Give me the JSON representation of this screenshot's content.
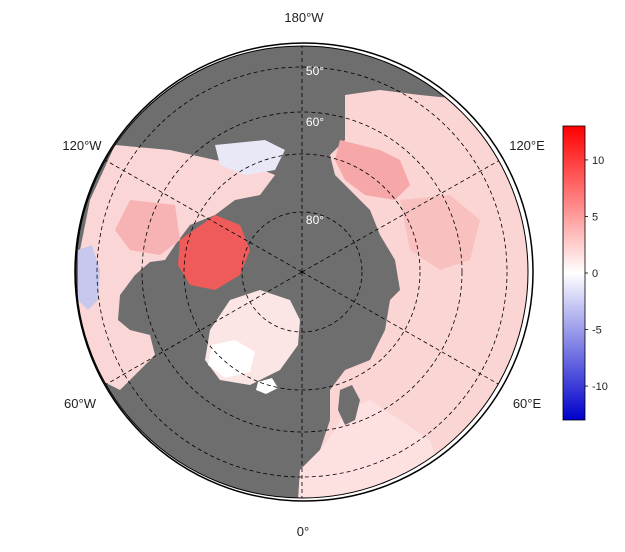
{
  "map": {
    "projection": "north-polar-stereographic",
    "land_color": "#6e6e6e",
    "ocean_color": "#6e6e6e",
    "longitude_labels": [
      {
        "id": "lon-180w",
        "text": "180°W"
      },
      {
        "id": "lon-120w",
        "text": "120°W"
      },
      {
        "id": "lon-60w",
        "text": "60°W"
      },
      {
        "id": "lon-0",
        "text": "0°"
      },
      {
        "id": "lon-60e",
        "text": "60°E"
      },
      {
        "id": "lon-120e",
        "text": "120°E"
      }
    ],
    "latitude_labels": [
      {
        "id": "lat-50",
        "text": "50°"
      },
      {
        "id": "lat-60",
        "text": "60°"
      },
      {
        "id": "lat-80",
        "text": "80°"
      }
    ]
  },
  "colorbar": {
    "min": -13,
    "max": 13,
    "ticks": [
      "10",
      "5",
      "0",
      "-5",
      "-10"
    ],
    "colors": [
      "#0000cc",
      "#ffffff",
      "#ff0000"
    ]
  }
}
